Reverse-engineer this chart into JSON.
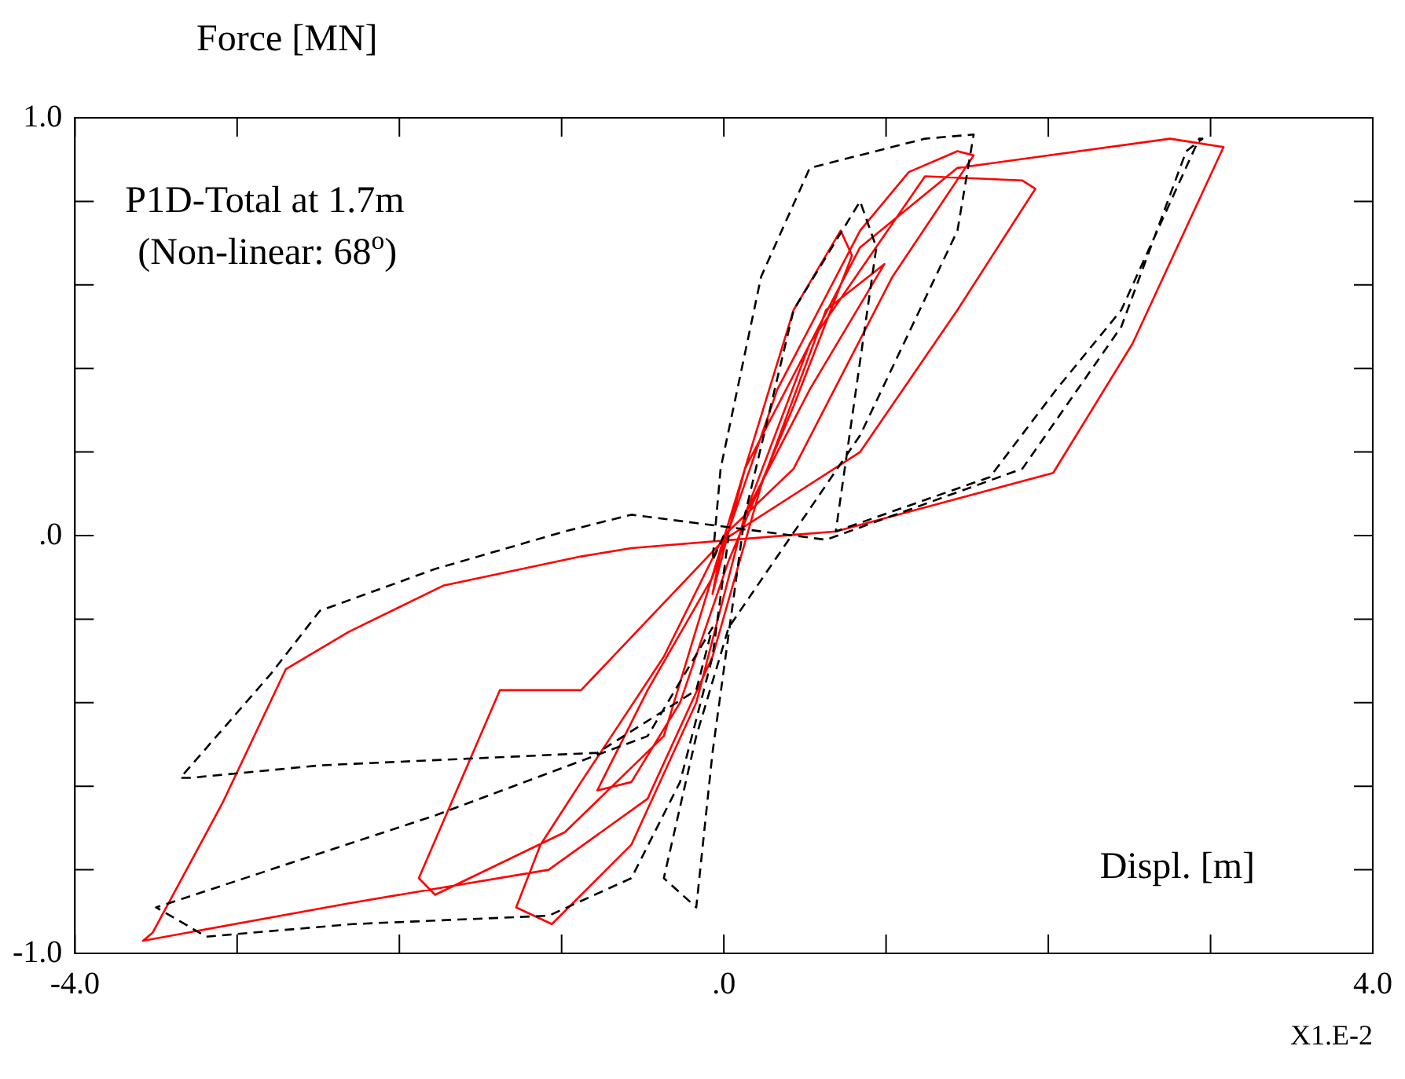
{
  "chart_data": {
    "type": "line",
    "title": "P1D-Total at 1.7m",
    "subtitle": "(Non-linear: 68$^{o}$)",
    "xlabel": "Displ. [m]",
    "ylabel": "Force [MN]",
    "annotations": [
      "X1.E-2"
    ],
    "xlim": [
      -4,
      4
    ],
    "ylim": [
      -1,
      1
    ],
    "xticks": [
      {
        "value": -4,
        "label": "-4.0"
      },
      {
        "value": -3,
        "label": null
      },
      {
        "value": -2,
        "label": null
      },
      {
        "value": -1,
        "label": null
      },
      {
        "value": 0,
        "label": ".0"
      },
      {
        "value": 1,
        "label": null
      },
      {
        "value": 2,
        "label": null
      },
      {
        "value": 3,
        "label": null
      },
      {
        "value": 4,
        "label": "4.0"
      }
    ],
    "yticks": [
      {
        "value": -1,
        "label": "-1.0"
      },
      {
        "value": -0.8,
        "label": null
      },
      {
        "value": -0.6,
        "label": null
      },
      {
        "value": -0.4,
        "label": null
      },
      {
        "value": -0.2,
        "label": null
      },
      {
        "value": 0,
        "label": ".0"
      },
      {
        "value": 0.2,
        "label": null
      },
      {
        "value": 0.4,
        "label": null
      },
      {
        "value": 0.6,
        "label": null
      },
      {
        "value": 0.8,
        "label": null
      },
      {
        "value": 1,
        "label": "1.0"
      }
    ],
    "grid": false,
    "legend": false,
    "marker": "none",
    "series": [
      {
        "color": "#000000",
        "line_style": "dashed",
        "x": [
          0,
          -0.07,
          -0.02,
          0.23,
          0.53,
          1.24,
          1.54,
          1.44,
          0.84,
          0.03,
          -0.17,
          -0.37,
          -0.17,
          -0.07,
          0.13,
          0.43,
          0.84,
          0.94,
          0.69,
          1.64,
          2.05,
          2.45,
          2.93,
          2.95,
          2.85,
          2.45,
          1.84,
          0.63,
          -0.57,
          -0.98,
          -1.78,
          -2.49,
          -2.79,
          -3.35,
          -3.29,
          -2.49,
          -0.78,
          -0.17,
          -0.07,
          -0.47,
          -1.78,
          -3.5,
          -3.19,
          -2.29,
          -1.08,
          -0.57,
          -0.27,
          -0.07,
          0.03
        ],
        "values": [
          0,
          -0.06,
          0.16,
          0.62,
          0.88,
          0.95,
          0.96,
          0.73,
          0.24,
          -0.22,
          -0.48,
          -0.82,
          -0.89,
          -0.52,
          0.05,
          0.54,
          0.8,
          0.69,
          0.01,
          0.14,
          0.35,
          0.54,
          0.95,
          0.95,
          0.92,
          0.5,
          0.16,
          -0.01,
          0.05,
          0.01,
          -0.08,
          -0.18,
          -0.33,
          -0.58,
          -0.58,
          -0.55,
          -0.52,
          -0.37,
          -0.22,
          -0.48,
          -0.67,
          -0.89,
          -0.96,
          -0.93,
          -0.91,
          -0.82,
          -0.59,
          -0.29,
          0
        ]
      },
      {
        "color": "#ff0000",
        "line_style": "solid",
        "x": [
          0,
          -0.07,
          0.13,
          0.43,
          0.72,
          0.79,
          0.43,
          0.03,
          -0.27,
          -0.57,
          -0.78,
          -0.47,
          -0.07,
          0.33,
          0.84,
          1.14,
          1.44,
          1.54,
          1.04,
          0.43,
          0,
          -0.37,
          -0.88,
          -1.13,
          -1.28,
          -1.06,
          -0.57,
          -0.17,
          0.13,
          0.53,
          1.24,
          1.84,
          1.92,
          1.44,
          0.84,
          0,
          -0.88,
          -1.38,
          -1.88,
          -1.78,
          -0.98,
          -0.37,
          0.13,
          0.84,
          1.44,
          2.75,
          3.08,
          2.52,
          2.03,
          0.69,
          -0.57,
          -0.88,
          -1.73,
          -2.31,
          -2.7,
          -3.09,
          -3.52,
          -3.58,
          -2.31,
          -1.08,
          -0.47,
          -0.07,
          0.23,
          0.63,
          0.99,
          0.53,
          0.13
        ],
        "values": [
          0,
          -0.14,
          0.16,
          0.54,
          0.73,
          0.67,
          0.31,
          -0.06,
          -0.4,
          -0.59,
          -0.61,
          -0.37,
          -0.1,
          0.35,
          0.73,
          0.87,
          0.92,
          0.91,
          0.62,
          0.16,
          0,
          -0.29,
          -0.59,
          -0.74,
          -0.89,
          -0.93,
          -0.74,
          -0.4,
          0.05,
          0.46,
          0.86,
          0.85,
          0.83,
          0.54,
          0.2,
          -0.01,
          -0.37,
          -0.37,
          -0.82,
          -0.86,
          -0.71,
          -0.48,
          0.16,
          0.69,
          0.88,
          0.95,
          0.93,
          0.46,
          0.15,
          0.01,
          -0.03,
          -0.05,
          -0.12,
          -0.23,
          -0.32,
          -0.64,
          -0.95,
          -0.97,
          -0.88,
          -0.8,
          -0.63,
          -0.29,
          0.12,
          0.54,
          0.65,
          0.35,
          0.05
        ]
      }
    ]
  }
}
